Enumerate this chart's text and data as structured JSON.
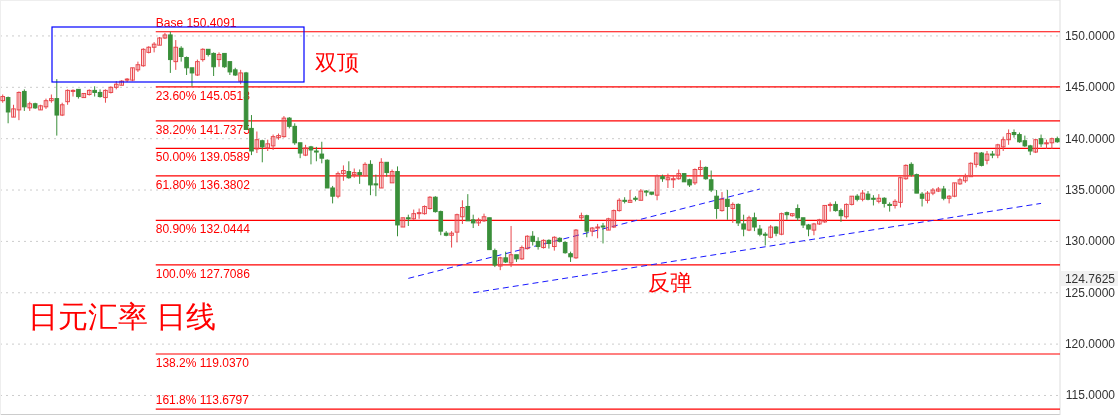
{
  "chart_data": {
    "type": "candlestick",
    "title": "日元汇率 日线",
    "annotations": [
      "双顶",
      "反弹",
      "124.7625"
    ],
    "categories": [
      null,
      null,
      null,
      null,
      null,
      null,
      null,
      null,
      null,
      null,
      null,
      null,
      null,
      null,
      null,
      null,
      null,
      null,
      null,
      null,
      null,
      null,
      null,
      null,
      null,
      null,
      null,
      null,
      null,
      null,
      null,
      null,
      null,
      null,
      null,
      null,
      null,
      null,
      null,
      null,
      null,
      null,
      null,
      null,
      null,
      null,
      null,
      null,
      null,
      null,
      null,
      null,
      null,
      null,
      null,
      null,
      null,
      null,
      null,
      null,
      null,
      null,
      null,
      null,
      null,
      null,
      null,
      null,
      null,
      null,
      null,
      null,
      null,
      null,
      null,
      null,
      null,
      null,
      null,
      null,
      null,
      null,
      null,
      null,
      null,
      null,
      null,
      null,
      null,
      null,
      null,
      null,
      null,
      null,
      null,
      null,
      null,
      null,
      null,
      null,
      null,
      null,
      null,
      null,
      null,
      null,
      null,
      null,
      null,
      null,
      null,
      null,
      null,
      null,
      null,
      null,
      null,
      null,
      null,
      null,
      null,
      null,
      null,
      null,
      null,
      null,
      null,
      null,
      null,
      null,
      null,
      null,
      null,
      null,
      null,
      null,
      null,
      null,
      null,
      null,
      null,
      null,
      null,
      null,
      null,
      null,
      null,
      null,
      null,
      null,
      null,
      null,
      null,
      null,
      null,
      null,
      null,
      null,
      null,
      null,
      null,
      null,
      null,
      null,
      null,
      null,
      null,
      null,
      null,
      null,
      null,
      null,
      null,
      null,
      null,
      null,
      null,
      null,
      null,
      null,
      null,
      null,
      null,
      null,
      null,
      null,
      null,
      null,
      null,
      null,
      null,
      null,
      null,
      null,
      null,
      null
    ],
    "ohlc": [
      [
        143.7,
        144.3,
        143.5,
        144.1
      ],
      [
        144.0,
        144.1,
        141.5,
        142.6
      ],
      [
        142.1,
        143.3,
        142.1,
        142.9
      ],
      [
        142.8,
        144.6,
        141.8,
        144.5
      ],
      [
        144.6,
        144.8,
        142.7,
        143.1
      ],
      [
        143.0,
        143.6,
        142.7,
        143.4
      ],
      [
        143.4,
        143.5,
        142.9,
        143.0
      ],
      [
        142.8,
        143.3,
        142.8,
        143.2
      ],
      [
        143.1,
        143.9,
        142.9,
        143.7
      ],
      [
        143.7,
        144.3,
        143.5,
        143.9
      ],
      [
        143.9,
        145.8,
        140.3,
        142.3
      ],
      [
        142.3,
        143.5,
        142.2,
        143.3
      ],
      [
        143.6,
        144.8,
        143.3,
        144.7
      ],
      [
        144.6,
        144.8,
        144.1,
        144.7
      ],
      [
        144.8,
        144.8,
        143.9,
        144.1
      ],
      [
        144.0,
        144.4,
        144.0,
        144.4
      ],
      [
        144.3,
        144.8,
        144.2,
        144.7
      ],
      [
        144.7,
        145.1,
        144.1,
        144.5
      ],
      [
        144.5,
        144.8,
        144.0,
        144.1
      ],
      [
        144.0,
        144.8,
        143.5,
        144.7
      ],
      [
        144.5,
        145.1,
        144.4,
        145.0
      ],
      [
        145.0,
        145.6,
        144.8,
        145.3
      ],
      [
        145.2,
        145.7,
        145.2,
        145.6
      ],
      [
        145.7,
        145.9,
        145.5,
        145.8
      ],
      [
        145.7,
        146.9,
        145.6,
        146.9
      ],
      [
        146.7,
        147.5,
        146.5,
        147.2
      ],
      [
        147.1,
        148.8,
        147.0,
        148.7
      ],
      [
        148.4,
        149.0,
        148.3,
        148.9
      ],
      [
        148.9,
        149.4,
        148.4,
        149.2
      ],
      [
        149.1,
        149.9,
        149.1,
        149.8
      ],
      [
        149.8,
        150.3,
        149.7,
        150.1
      ],
      [
        150.1,
        150.4,
        146.4,
        147.7
      ],
      [
        147.5,
        149.6,
        146.7,
        148.9
      ],
      [
        148.8,
        149.0,
        147.5,
        148.0
      ],
      [
        147.9,
        148.0,
        146.2,
        146.9
      ],
      [
        146.9,
        146.9,
        145.1,
        146.4
      ],
      [
        146.2,
        147.7,
        146.1,
        147.5
      ],
      [
        147.7,
        148.8,
        147.5,
        148.7
      ],
      [
        148.7,
        148.7,
        148.0,
        148.2
      ],
      [
        148.3,
        148.4,
        146.1,
        147.0
      ],
      [
        147.7,
        148.4,
        147.0,
        148.2
      ],
      [
        148.3,
        148.3,
        146.9,
        147.0
      ],
      [
        147.5,
        147.5,
        146.2,
        146.5
      ],
      [
        146.7,
        146.9,
        146.1,
        146.2
      ],
      [
        145.6,
        146.7,
        145.3,
        146.4
      ],
      [
        146.4,
        146.5,
        140.9,
        140.9
      ],
      [
        141.0,
        142.3,
        138.4,
        138.8
      ],
      [
        139.0,
        140.7,
        138.6,
        139.9
      ],
      [
        139.8,
        139.9,
        137.7,
        139.2
      ],
      [
        139.1,
        139.9,
        138.8,
        139.5
      ],
      [
        139.3,
        140.4,
        138.9,
        140.2
      ],
      [
        140.1,
        140.5,
        139.9,
        140.3
      ],
      [
        140.2,
        142.2,
        140.1,
        142.0
      ],
      [
        142.0,
        142.1,
        141.0,
        141.2
      ],
      [
        141.2,
        141.5,
        139.4,
        139.6
      ],
      [
        139.6,
        139.6,
        138.1,
        138.6
      ],
      [
        138.4,
        139.4,
        138.3,
        139.1
      ],
      [
        139.2,
        139.3,
        137.5,
        138.9
      ],
      [
        138.8,
        139.2,
        137.8,
        138.7
      ],
      [
        138.5,
        139.7,
        137.6,
        138.1
      ],
      [
        137.9,
        138.0,
        135.2,
        135.2
      ],
      [
        135.2,
        135.4,
        133.7,
        134.4
      ],
      [
        134.4,
        136.8,
        134.2,
        136.6
      ],
      [
        136.6,
        137.4,
        135.9,
        136.9
      ],
      [
        136.8,
        137.8,
        136.1,
        136.2
      ],
      [
        136.5,
        137.1,
        136.2,
        136.7
      ],
      [
        136.7,
        137.0,
        135.6,
        136.5
      ],
      [
        136.4,
        137.7,
        136.3,
        137.5
      ],
      [
        137.5,
        137.9,
        134.5,
        135.5
      ],
      [
        135.6,
        136.5,
        134.4,
        135.5
      ],
      [
        135.2,
        138.1,
        135.2,
        137.7
      ],
      [
        137.7,
        137.7,
        136.3,
        136.7
      ],
      [
        135.7,
        137.0,
        135.7,
        136.8
      ],
      [
        136.8,
        137.3,
        130.5,
        131.6
      ],
      [
        131.4,
        132.3,
        131.4,
        132.3
      ],
      [
        132.3,
        132.6,
        131.5,
        132.2
      ],
      [
        132.2,
        133.1,
        132.1,
        132.7
      ],
      [
        132.7,
        133.2,
        132.2,
        132.8
      ],
      [
        132.7,
        133.5,
        132.6,
        133.4
      ],
      [
        133.2,
        134.4,
        133.1,
        134.3
      ],
      [
        134.3,
        134.4,
        132.8,
        132.9
      ],
      [
        132.9,
        133.0,
        130.6,
        131.0
      ],
      [
        130.8,
        131.0,
        130.5,
        130.6
      ],
      [
        130.6,
        131.0,
        129.4,
        130.8
      ],
      [
        130.9,
        132.7,
        129.9,
        132.6
      ],
      [
        132.4,
        134.0,
        131.7,
        133.3
      ],
      [
        133.4,
        134.6,
        132.0,
        132.0
      ],
      [
        132.1,
        132.6,
        131.3,
        131.8
      ],
      [
        131.8,
        132.3,
        131.5,
        132.1
      ],
      [
        132.0,
        132.7,
        131.9,
        132.4
      ],
      [
        132.3,
        132.3,
        129.2,
        129.2
      ],
      [
        129.1,
        129.3,
        127.5,
        127.7
      ],
      [
        127.6,
        128.5,
        127.2,
        128.4
      ],
      [
        128.4,
        129.0,
        127.9,
        128.0
      ],
      [
        127.9,
        131.5,
        127.5,
        128.7
      ],
      [
        128.7,
        128.7,
        128.0,
        128.3
      ],
      [
        128.3,
        129.6,
        128.2,
        129.4
      ],
      [
        129.3,
        130.6,
        129.2,
        130.5
      ],
      [
        130.5,
        131.0,
        129.6,
        130.0
      ],
      [
        130.0,
        130.4,
        129.2,
        129.5
      ],
      [
        129.4,
        130.2,
        129.3,
        130.1
      ],
      [
        130.1,
        130.2,
        129.3,
        129.8
      ],
      [
        129.5,
        130.5,
        129.1,
        130.4
      ],
      [
        130.3,
        130.4,
        129.9,
        130.0
      ],
      [
        129.9,
        130.0,
        128.8,
        128.9
      ],
      [
        128.8,
        129.0,
        128.0,
        128.5
      ],
      [
        128.4,
        131.2,
        128.3,
        131.1
      ],
      [
        132.3,
        132.8,
        132.1,
        132.5
      ],
      [
        132.5,
        132.6,
        130.4,
        131.0
      ],
      [
        131.0,
        131.4,
        130.5,
        131.3
      ],
      [
        131.3,
        131.7,
        130.3,
        131.4
      ],
      [
        131.5,
        131.8,
        129.8,
        131.4
      ],
      [
        131.1,
        132.3,
        131.1,
        132.2
      ],
      [
        131.4,
        133.1,
        131.3,
        133.0
      ],
      [
        133.0,
        134.2,
        132.9,
        134.0
      ],
      [
        134.0,
        134.3,
        133.7,
        133.9
      ],
      [
        133.8,
        135.0,
        133.8,
        134.0
      ],
      [
        134.2,
        134.4,
        133.9,
        134.1
      ],
      [
        134.0,
        135.1,
        134.0,
        134.9
      ],
      [
        134.9,
        135.0,
        134.4,
        134.8
      ],
      [
        134.8,
        134.8,
        134.5,
        134.6
      ],
      [
        134.5,
        136.5,
        134.0,
        136.4
      ],
      [
        136.3,
        136.5,
        135.8,
        136.1
      ],
      [
        136.0,
        136.6,
        135.2,
        136.2
      ],
      [
        136.0,
        136.4,
        135.2,
        136.1
      ],
      [
        136.1,
        137.0,
        136.0,
        136.6
      ],
      [
        136.6,
        136.6,
        135.8,
        135.8
      ],
      [
        136.0,
        136.1,
        135.3,
        135.5
      ],
      [
        135.7,
        137.1,
        135.5,
        137.0
      ],
      [
        137.0,
        137.9,
        136.4,
        137.2
      ],
      [
        137.2,
        137.3,
        136.0,
        136.1
      ],
      [
        136.0,
        136.9,
        134.8,
        135.0
      ],
      [
        134.4,
        135.0,
        132.2,
        133.2
      ],
      [
        133.0,
        134.8,
        132.9,
        134.1
      ],
      [
        134.1,
        135.0,
        132.1,
        133.4
      ],
      [
        133.2,
        133.8,
        131.8,
        133.6
      ],
      [
        133.6,
        133.7,
        131.5,
        131.8
      ],
      [
        131.7,
        132.6,
        130.5,
        131.2
      ],
      [
        131.1,
        132.5,
        131.0,
        132.3
      ],
      [
        132.3,
        132.8,
        131.0,
        131.4
      ],
      [
        131.2,
        131.6,
        130.5,
        130.7
      ],
      [
        130.7,
        130.9,
        129.6,
        130.6
      ],
      [
        130.4,
        131.6,
        130.3,
        131.4
      ],
      [
        131.4,
        131.5,
        130.5,
        130.8
      ],
      [
        130.7,
        132.8,
        130.6,
        132.7
      ],
      [
        132.8,
        132.9,
        132.1,
        132.6
      ],
      [
        132.5,
        132.7,
        132.4,
        132.7
      ],
      [
        133.2,
        133.6,
        132.0,
        132.3
      ],
      [
        132.3,
        132.3,
        131.3,
        131.6
      ],
      [
        131.6,
        131.7,
        130.5,
        131.2
      ],
      [
        131.1,
        131.8,
        130.6,
        131.7
      ],
      [
        131.7,
        132.2,
        131.6,
        132.1
      ],
      [
        131.9,
        133.5,
        131.8,
        133.5
      ],
      [
        133.5,
        133.8,
        132.9,
        133.6
      ],
      [
        133.6,
        133.9,
        132.9,
        133.0
      ],
      [
        133.0,
        133.2,
        131.9,
        132.5
      ],
      [
        132.4,
        133.7,
        132.2,
        133.6
      ],
      [
        133.6,
        134.4,
        133.5,
        134.4
      ],
      [
        134.4,
        134.6,
        133.9,
        134.1
      ],
      [
        134.1,
        135.0,
        133.9,
        134.7
      ],
      [
        134.6,
        134.9,
        134.0,
        134.1
      ],
      [
        134.2,
        134.5,
        133.5,
        134.1
      ],
      [
        133.9,
        134.6,
        133.7,
        134.2
      ],
      [
        134.2,
        134.3,
        133.3,
        133.7
      ],
      [
        133.6,
        133.8,
        132.9,
        133.5
      ],
      [
        133.5,
        134.1,
        133.2,
        133.9
      ],
      [
        133.8,
        136.3,
        133.3,
        136.2
      ],
      [
        136.1,
        137.5,
        136.0,
        137.4
      ],
      [
        137.5,
        137.7,
        136.3,
        136.5
      ],
      [
        136.5,
        136.6,
        134.7,
        134.7
      ],
      [
        134.6,
        134.8,
        133.4,
        134.2
      ],
      [
        134.0,
        134.9,
        133.7,
        134.7
      ],
      [
        134.7,
        135.2,
        134.5,
        135.0
      ],
      [
        134.9,
        135.3,
        134.8,
        135.1
      ],
      [
        135.1,
        135.4,
        134.0,
        134.2
      ],
      [
        134.2,
        134.5,
        133.7,
        134.4
      ],
      [
        134.4,
        135.7,
        134.3,
        135.7
      ],
      [
        135.6,
        136.2,
        135.5,
        136.0
      ],
      [
        135.9,
        136.6,
        135.7,
        136.3
      ],
      [
        136.3,
        137.7,
        136.3,
        137.6
      ],
      [
        137.5,
        138.7,
        137.2,
        138.6
      ],
      [
        138.6,
        138.7,
        137.3,
        137.4
      ],
      [
        137.9,
        138.8,
        137.5,
        138.5
      ],
      [
        138.5,
        138.8,
        138.1,
        138.4
      ],
      [
        138.4,
        139.5,
        138.1,
        139.4
      ],
      [
        139.2,
        140.2,
        138.8,
        139.9
      ],
      [
        139.9,
        140.9,
        139.4,
        140.5
      ],
      [
        140.6,
        140.9,
        140.1,
        140.4
      ],
      [
        140.4,
        140.6,
        139.6,
        139.7
      ],
      [
        139.8,
        140.3,
        139.2,
        139.3
      ],
      [
        139.3,
        139.4,
        138.4,
        138.8
      ],
      [
        138.7,
        140.0,
        138.6,
        139.9
      ],
      [
        140.0,
        140.4,
        139.2,
        139.5
      ],
      [
        139.5,
        139.9,
        139.0,
        139.6
      ],
      [
        139.6,
        140.1,
        139.0,
        140.0
      ],
      [
        140.0,
        140.2,
        139.6,
        139.7
      ]
    ],
    "colors": [
      "#e8474c",
      "#3a8f3a",
      "#e8474c",
      "#e8474c",
      "#3a8f3a",
      "#e8474c",
      "#3a8f3a",
      "#e8474c",
      "#e8474c",
      "#e8474c",
      "#3a8f3a",
      "#e8474c",
      "#e8474c",
      "#e8474c",
      "#3a8f3a",
      "#e8474c",
      "#e8474c",
      "#3a8f3a",
      "#3a8f3a",
      "#e8474c",
      "#e8474c",
      "#e8474c",
      "#e8474c",
      "#e8474c",
      "#e8474c",
      "#e8474c",
      "#e8474c",
      "#e8474c",
      "#e8474c",
      "#e8474c",
      "#e8474c",
      "#3a8f3a",
      "#e8474c",
      "#3a8f3a",
      "#3a8f3a",
      "#3a8f3a",
      "#e8474c",
      "#e8474c",
      "#3a8f3a",
      "#3a8f3a",
      "#e8474c",
      "#3a8f3a",
      "#3a8f3a",
      "#3a8f3a",
      "#e8474c",
      "#3a8f3a",
      "#3a8f3a",
      "#e8474c",
      "#3a8f3a",
      "#e8474c",
      "#e8474c",
      "#e8474c",
      "#e8474c",
      "#3a8f3a",
      "#3a8f3a",
      "#3a8f3a",
      "#e8474c",
      "#3a8f3a",
      "#3a8f3a",
      "#3a8f3a",
      "#3a8f3a",
      "#3a8f3a",
      "#e8474c",
      "#e8474c",
      "#3a8f3a",
      "#e8474c",
      "#3a8f3a",
      "#e8474c",
      "#3a8f3a",
      "#3a8f3a",
      "#e8474c",
      "#3a8f3a",
      "#e8474c",
      "#3a8f3a",
      "#e8474c",
      "#3a8f3a",
      "#e8474c",
      "#e8474c",
      "#e8474c",
      "#e8474c",
      "#3a8f3a",
      "#3a8f3a",
      "#3a8f3a",
      "#e8474c",
      "#e8474c",
      "#e8474c",
      "#3a8f3a",
      "#3a8f3a",
      "#e8474c",
      "#e8474c",
      "#3a8f3a",
      "#3a8f3a",
      "#e8474c",
      "#3a8f3a",
      "#e8474c",
      "#3a8f3a",
      "#e8474c",
      "#e8474c",
      "#3a8f3a",
      "#3a8f3a",
      "#e8474c",
      "#3a8f3a",
      "#e8474c",
      "#3a8f3a",
      "#3a8f3a",
      "#3a8f3a",
      "#e8474c",
      "#e8474c",
      "#3a8f3a",
      "#e8474c",
      "#e8474c",
      "#3a8f3a",
      "#e8474c",
      "#e8474c",
      "#e8474c",
      "#3a8f3a",
      "#e8474c",
      "#3a8f3a",
      "#e8474c",
      "#3a8f3a",
      "#3a8f3a",
      "#e8474c",
      "#3a8f3a",
      "#e8474c",
      "#e8474c",
      "#e8474c",
      "#3a8f3a",
      "#3a8f3a",
      "#e8474c",
      "#e8474c",
      "#3a8f3a",
      "#3a8f3a",
      "#3a8f3a",
      "#e8474c",
      "#3a8f3a",
      "#e8474c",
      "#3a8f3a",
      "#3a8f3a",
      "#e8474c",
      "#3a8f3a",
      "#3a8f3a",
      "#3a8f3a",
      "#e8474c",
      "#3a8f3a",
      "#e8474c",
      "#3a8f3a",
      "#e8474c",
      "#3a8f3a",
      "#3a8f3a",
      "#3a8f3a",
      "#e8474c",
      "#e8474c",
      "#e8474c",
      "#e8474c",
      "#3a8f3a",
      "#3a8f3a",
      "#e8474c",
      "#e8474c",
      "#3a8f3a",
      "#e8474c",
      "#3a8f3a",
      "#3a8f3a",
      "#e8474c",
      "#3a8f3a",
      "#3a8f3a",
      "#e8474c",
      "#e8474c",
      "#e8474c",
      "#3a8f3a",
      "#3a8f3a",
      "#3a8f3a",
      "#e8474c",
      "#e8474c",
      "#e8474c",
      "#3a8f3a",
      "#e8474c",
      "#e8474c",
      "#e8474c",
      "#e8474c",
      "#e8474c",
      "#e8474c",
      "#3a8f3a",
      "#e8474c",
      "#3a8f3a",
      "#e8474c",
      "#e8474c",
      "#e8474c",
      "#3a8f3a",
      "#3a8f3a",
      "#3a8f3a",
      "#3a8f3a",
      "#e8474c",
      "#3a8f3a",
      "#e8474c",
      "#e8474c",
      "#3a8f3a"
    ],
    "series": [
      {
        "type": "line",
        "color": "#1a1aff",
        "values": [
          null,
          null,
          null,
          null,
          null,
          null,
          null,
          null,
          null,
          null,
          null,
          null,
          null,
          null,
          null,
          null,
          null,
          null,
          null,
          null,
          null,
          null,
          null,
          null,
          null,
          null,
          null,
          null,
          null,
          null,
          null,
          null,
          null,
          null,
          null,
          null,
          null,
          null,
          null,
          null,
          null,
          null,
          null,
          null,
          null,
          null,
          null,
          null,
          null,
          null,
          null,
          null,
          null,
          null,
          null,
          null,
          null,
          null,
          null,
          null,
          null,
          null,
          null,
          null,
          null,
          null,
          null,
          null,
          null,
          null,
          null,
          null,
          null,
          null,
          null,
          126.4,
          null,
          null,
          null,
          null,
          null,
          null,
          null,
          null,
          null,
          null,
          null,
          null,
          null,
          null,
          null,
          null,
          null,
          null,
          null,
          null,
          null,
          null,
          null,
          null,
          null,
          null,
          null,
          null,
          null,
          null,
          null,
          null,
          null,
          null,
          null,
          null,
          null,
          null,
          null,
          null,
          null,
          null,
          null,
          null,
          null,
          null,
          null,
          null,
          null,
          null,
          null,
          null,
          null,
          null,
          null,
          null,
          null,
          null,
          null,
          null,
          null,
          null,
          null,
          null,
          135.1,
          null,
          null,
          null,
          null,
          null,
          null,
          null,
          null,
          null,
          null,
          null,
          null,
          null,
          null,
          null,
          null,
          null,
          null,
          null,
          null,
          null,
          null,
          null,
          null,
          null,
          null,
          null,
          null,
          null,
          null,
          null,
          null,
          null,
          null,
          null,
          null,
          null,
          null,
          null,
          null,
          null,
          null,
          null,
          null,
          null,
          null,
          null,
          null,
          null,
          null,
          null,
          null,
          null,
          null,
          null
        ]
      },
      {
        "type": "line",
        "color": "#1a1aff",
        "values": [
          null,
          null,
          null,
          null,
          null,
          null,
          null,
          null,
          null,
          null,
          null,
          null,
          null,
          null,
          null,
          null,
          null,
          null,
          null,
          null,
          null,
          null,
          null,
          null,
          null,
          null,
          null,
          null,
          null,
          null,
          null,
          null,
          null,
          null,
          null,
          null,
          null,
          null,
          null,
          null,
          null,
          null,
          null,
          null,
          null,
          null,
          null,
          null,
          null,
          null,
          null,
          null,
          null,
          null,
          null,
          null,
          null,
          null,
          null,
          null,
          null,
          null,
          null,
          null,
          null,
          null,
          null,
          null,
          null,
          null,
          null,
          null,
          null,
          null,
          null,
          null,
          null,
          null,
          null,
          null,
          null,
          null,
          null,
          null,
          null,
          null,
          null,
          125.0,
          null,
          null,
          null,
          null,
          null,
          null,
          null,
          null,
          null,
          null,
          null,
          null,
          null,
          null,
          null,
          null,
          null,
          null,
          null,
          null,
          null,
          null,
          null,
          null,
          null,
          null,
          null,
          null,
          null,
          null,
          null,
          null,
          null,
          null,
          null,
          null,
          null,
          null,
          null,
          null,
          null,
          null,
          null,
          null,
          null,
          null,
          null,
          null,
          null,
          null,
          null,
          null,
          null,
          null,
          null,
          null,
          null,
          null,
          null,
          null,
          null,
          null,
          null,
          null,
          null,
          null,
          null,
          null,
          null,
          null,
          null,
          null,
          null,
          null,
          null,
          null,
          null,
          null,
          null,
          null,
          null,
          null,
          null,
          null,
          null,
          null,
          null,
          null,
          null,
          null,
          null,
          null,
          null,
          null,
          null,
          null,
          null,
          null,
          null,
          null,
          null,
          null,
          null,
          null,
          133.7,
          null,
          null,
          null
        ]
      }
    ],
    "line_style": "dashed",
    "ref_lines": [
      {
        "axis": "y",
        "value": 150.4091,
        "label": "Base 150.4091",
        "color": "#ff0000"
      },
      {
        "axis": "y",
        "value": 145.0518,
        "label": "23.60% 145.0518",
        "color": "#ff0000"
      },
      {
        "axis": "y",
        "value": 141.7375,
        "label": "38.20% 141.7375",
        "color": "#ff0000"
      },
      {
        "axis": "y",
        "value": 139.0589,
        "label": "50.00% 139.0589",
        "color": "#ff0000"
      },
      {
        "axis": "y",
        "value": 136.3802,
        "label": "61.80% 136.3802",
        "color": "#ff0000"
      },
      {
        "axis": "y",
        "value": 132.0444,
        "label": "80.90% 132.0444",
        "color": "#ff0000"
      },
      {
        "axis": "y",
        "value": 127.7086,
        "label": "100.0% 127.7086",
        "color": "#ff0000"
      },
      {
        "axis": "y",
        "value": 119.037,
        "label": "138.2% 119.0370",
        "color": "#ff0000"
      },
      {
        "axis": "y",
        "value": 113.6797,
        "label": "161.8% 113.6797",
        "color": "#ff0000"
      }
    ],
    "ylim": [
      113.1,
      153.5
    ],
    "yticks": [
      {
        "value": 150,
        "label": "150.0000"
      },
      {
        "value": 145,
        "label": "145.0000"
      },
      {
        "value": 140,
        "label": "140.0000"
      },
      {
        "value": 135,
        "label": "135.0000"
      },
      {
        "value": 130,
        "label": "130.0000"
      },
      {
        "value": 125,
        "label": "125.0000"
      },
      {
        "value": 120,
        "label": "120.0000"
      },
      {
        "value": 115,
        "label": "115.0000"
      }
    ],
    "grid": "y",
    "tick_labels": "y"
  }
}
